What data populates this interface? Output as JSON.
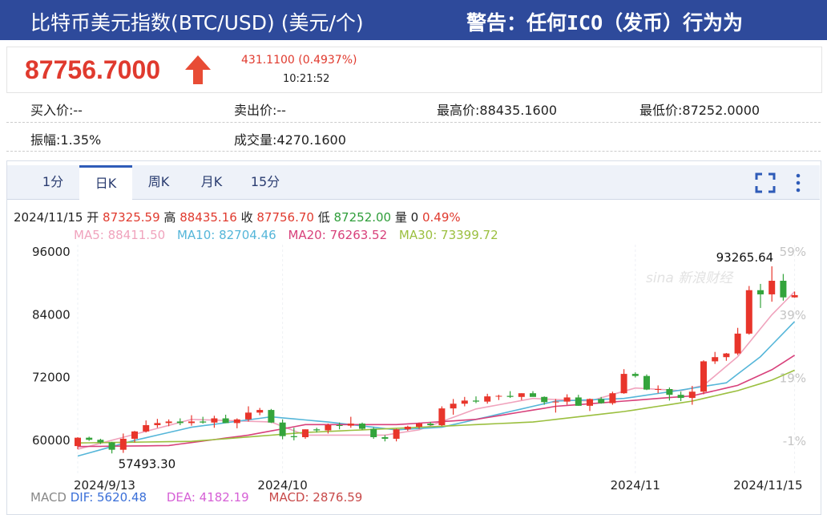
{
  "header": {
    "title": "比特币美元指数(BTC/USD) (美元/个)",
    "warning": "警告：任何ICO（发币）行为为"
  },
  "quote": {
    "price": "87756.7000",
    "change": "431.1100 (0.4937%)",
    "time": "10:21:52"
  },
  "stats": [
    "买入价:--",
    "卖出价:--",
    "最高价:88435.1600",
    "最低价:87252.0000",
    "振幅:1.35%",
    "成交量:4270.1600"
  ],
  "tabs": [
    "1分",
    "日K",
    "周K",
    "月K",
    "15分"
  ],
  "chart_data": {
    "type": "candlestick",
    "info": {
      "labels": [
        "开",
        "高",
        "收",
        "低",
        "量"
      ],
      "values": [
        "87325.59",
        "88435.16",
        "87756.70",
        "87252.00",
        "0"
      ],
      "change": "0.49%"
    },
    "annotations": {
      "max": "93265.64",
      "min": "57493.30"
    },
    "watermark": "sina 新浪财经",
    "up_color": "#e8352b",
    "down_color": "#34a43c",
    "categories": [
      "2024/9/13",
      null,
      null,
      null,
      null,
      null,
      null,
      null,
      null,
      null,
      null,
      null,
      null,
      null,
      null,
      null,
      null,
      null,
      "2024/10",
      null,
      null,
      null,
      null,
      null,
      null,
      null,
      null,
      null,
      null,
      null,
      null,
      null,
      null,
      null,
      null,
      null,
      null,
      null,
      null,
      null,
      null,
      null,
      null,
      null,
      null,
      null,
      null,
      null,
      null,
      "2024/11",
      null,
      null,
      null,
      null,
      null,
      null,
      null,
      null,
      null,
      null,
      null,
      null,
      null,
      "2024/11/15"
    ],
    "candles": [
      {
        "o": 58900,
        "h": 60600,
        "l": 58300,
        "c": 60500
      },
      {
        "o": 60500,
        "h": 60700,
        "l": 59900,
        "c": 60100
      },
      {
        "o": 60100,
        "h": 60300,
        "l": 59300,
        "c": 59600
      },
      {
        "o": 59600,
        "h": 59700,
        "l": 57493.3,
        "c": 58200
      },
      {
        "o": 58200,
        "h": 61300,
        "l": 57600,
        "c": 60300
      },
      {
        "o": 60300,
        "h": 61800,
        "l": 59600,
        "c": 61700
      },
      {
        "o": 61700,
        "h": 63800,
        "l": 61500,
        "c": 62900
      },
      {
        "o": 62900,
        "h": 64100,
        "l": 62400,
        "c": 63300
      },
      {
        "o": 63300,
        "h": 64000,
        "l": 62700,
        "c": 63600
      },
      {
        "o": 63600,
        "h": 64200,
        "l": 62900,
        "c": 63300
      },
      {
        "o": 63300,
        "h": 64800,
        "l": 62800,
        "c": 63600
      },
      {
        "o": 63600,
        "h": 64500,
        "l": 63200,
        "c": 63400
      },
      {
        "o": 63400,
        "h": 64700,
        "l": 62400,
        "c": 64200
      },
      {
        "o": 64200,
        "h": 64900,
        "l": 63300,
        "c": 63300
      },
      {
        "o": 63300,
        "h": 64200,
        "l": 62300,
        "c": 64000
      },
      {
        "o": 64000,
        "h": 66500,
        "l": 63600,
        "c": 65300
      },
      {
        "o": 65300,
        "h": 66200,
        "l": 64800,
        "c": 65800
      },
      {
        "o": 65800,
        "h": 66000,
        "l": 63300,
        "c": 63400
      },
      {
        "o": 63400,
        "h": 64000,
        "l": 60200,
        "c": 60800
      },
      {
        "o": 60800,
        "h": 62400,
        "l": 60000,
        "c": 60600
      },
      {
        "o": 60600,
        "h": 62100,
        "l": 60300,
        "c": 62100
      },
      {
        "o": 62100,
        "h": 62400,
        "l": 61500,
        "c": 61900
      },
      {
        "o": 61900,
        "h": 63200,
        "l": 61300,
        "c": 62900
      },
      {
        "o": 62900,
        "h": 63400,
        "l": 62100,
        "c": 62800
      },
      {
        "o": 62800,
        "h": 64500,
        "l": 62400,
        "c": 63200
      },
      {
        "o": 63200,
        "h": 63400,
        "l": 62000,
        "c": 62200
      },
      {
        "o": 62200,
        "h": 62500,
        "l": 60300,
        "c": 60600
      },
      {
        "o": 60600,
        "h": 61000,
        "l": 59800,
        "c": 60300
      },
      {
        "o": 60300,
        "h": 62200,
        "l": 59800,
        "c": 62100
      },
      {
        "o": 62100,
        "h": 62800,
        "l": 61800,
        "c": 62600
      },
      {
        "o": 62600,
        "h": 63400,
        "l": 62200,
        "c": 63200
      },
      {
        "o": 63200,
        "h": 63500,
        "l": 62800,
        "c": 62900
      },
      {
        "o": 62900,
        "h": 66500,
        "l": 62700,
        "c": 66100
      },
      {
        "o": 66100,
        "h": 67900,
        "l": 64900,
        "c": 67000
      },
      {
        "o": 67000,
        "h": 68300,
        "l": 66500,
        "c": 67600
      },
      {
        "o": 67600,
        "h": 68400,
        "l": 67100,
        "c": 67400
      },
      {
        "o": 67400,
        "h": 68900,
        "l": 67000,
        "c": 68400
      },
      {
        "o": 68400,
        "h": 68700,
        "l": 67700,
        "c": 68500
      },
      {
        "o": 68500,
        "h": 69400,
        "l": 68100,
        "c": 68300
      },
      {
        "o": 68300,
        "h": 69000,
        "l": 67700,
        "c": 69000
      },
      {
        "o": 69000,
        "h": 69400,
        "l": 68400,
        "c": 68300
      },
      {
        "o": 68300,
        "h": 68400,
        "l": 66800,
        "c": 67300
      },
      {
        "o": 67300,
        "h": 67900,
        "l": 65300,
        "c": 67400
      },
      {
        "o": 67400,
        "h": 68800,
        "l": 66800,
        "c": 68200
      },
      {
        "o": 68200,
        "h": 68700,
        "l": 66600,
        "c": 66600
      },
      {
        "o": 66600,
        "h": 68000,
        "l": 65600,
        "c": 67900
      },
      {
        "o": 67900,
        "h": 68300,
        "l": 67000,
        "c": 67100
      },
      {
        "o": 67100,
        "h": 69300,
        "l": 66800,
        "c": 69000
      },
      {
        "o": 69000,
        "h": 73600,
        "l": 68900,
        "c": 72700
      },
      {
        "o": 72700,
        "h": 73000,
        "l": 72000,
        "c": 72300
      },
      {
        "o": 72300,
        "h": 72600,
        "l": 69600,
        "c": 69700
      },
      {
        "o": 69700,
        "h": 70500,
        "l": 69000,
        "c": 69800
      },
      {
        "o": 69800,
        "h": 70100,
        "l": 67600,
        "c": 68700
      },
      {
        "o": 68700,
        "h": 69300,
        "l": 67500,
        "c": 68100
      },
      {
        "o": 68100,
        "h": 70400,
        "l": 66800,
        "c": 69300
      },
      {
        "o": 69300,
        "h": 75300,
        "l": 68800,
        "c": 75100
      },
      {
        "o": 75100,
        "h": 76900,
        "l": 74600,
        "c": 75900
      },
      {
        "o": 75900,
        "h": 76700,
        "l": 75200,
        "c": 76600
      },
      {
        "o": 76600,
        "h": 81500,
        "l": 76300,
        "c": 80400
      },
      {
        "o": 80400,
        "h": 89500,
        "l": 80200,
        "c": 88700
      },
      {
        "o": 88700,
        "h": 89900,
        "l": 85300,
        "c": 87900
      },
      {
        "o": 87900,
        "h": 93265.64,
        "l": 86500,
        "c": 90500
      },
      {
        "o": 90500,
        "h": 91800,
        "l": 86700,
        "c": 87325.59
      },
      {
        "o": 87325.59,
        "h": 88435.16,
        "l": 87252,
        "c": 87756.7
      }
    ],
    "series": [
      {
        "name": "MA5:",
        "color": "#f0a3bd",
        "latest_label": "88411.50",
        "values": [
          58300,
          58870,
          59440,
          60010,
          60580,
          61150,
          61720,
          62290,
          62860,
          63430,
          64000,
          63930,
          63860,
          63790,
          63710,
          63640,
          63570,
          63500,
          62670,
          61830,
          61000,
          61000,
          61000,
          61000,
          61000,
          61000,
          61000,
          61000,
          61330,
          61670,
          62000,
          62800,
          63600,
          64400,
          65200,
          66000,
          66400,
          66800,
          67200,
          67600,
          68000,
          67900,
          67800,
          67700,
          67600,
          67500,
          68130,
          68750,
          69380,
          70000,
          69880,
          69750,
          69630,
          69500,
          70000,
          70500,
          72330,
          74170,
          76000,
          78670,
          81330,
          84000,
          86210,
          88411.5
        ]
      },
      {
        "name": "MA10:",
        "color": "#55b6d9",
        "latest_label": "82704.46",
        "values": [
          57000,
          57600,
          58200,
          58800,
          59400,
          60000,
          60500,
          61000,
          61500,
          62000,
          62500,
          62790,
          63070,
          63360,
          63640,
          63930,
          64210,
          64500,
          64300,
          64100,
          63900,
          63700,
          63500,
          63250,
          63000,
          62750,
          62500,
          62250,
          62000,
          62130,
          62250,
          62380,
          62500,
          63000,
          63500,
          64000,
          64500,
          65000,
          65500,
          66000,
          66500,
          67000,
          67500,
          67580,
          67670,
          67750,
          67830,
          67920,
          68000,
          68320,
          68640,
          68960,
          69280,
          69600,
          69950,
          70300,
          70650,
          71000,
          72670,
          74330,
          76000,
          78230,
          80470,
          82704.46
        ]
      },
      {
        "name": "MA20:",
        "color": "#d8417b",
        "latest_label": "76263.52",
        "values": [
          58800,
          58830,
          58850,
          58880,
          58900,
          58930,
          58950,
          58980,
          59000,
          59290,
          59570,
          59860,
          60140,
          60430,
          60710,
          61000,
          61400,
          61800,
          62200,
          62600,
          63000,
          63000,
          63000,
          63000,
          63000,
          63000,
          63000,
          63000,
          63000,
          63140,
          63290,
          63430,
          63570,
          63710,
          63860,
          64000,
          64360,
          64710,
          65070,
          65430,
          65790,
          66140,
          66500,
          66670,
          66830,
          67000,
          67170,
          67330,
          67500,
          67670,
          67830,
          68000,
          68170,
          68330,
          68500,
          69000,
          69500,
          70000,
          70500,
          71500,
          72500,
          73500,
          74880,
          76263.52
        ]
      },
      {
        "name": "MA30:",
        "color": "#9bbf3f",
        "latest_label": "73399.72",
        "values": [
          59500,
          59530,
          59560,
          59590,
          59620,
          59650,
          59680,
          59710,
          59740,
          59770,
          59800,
          59970,
          60140,
          60310,
          60480,
          60650,
          60820,
          60990,
          61160,
          61330,
          61500,
          61600,
          61700,
          61800,
          61900,
          62000,
          62100,
          62200,
          62300,
          62400,
          62500,
          62600,
          62700,
          62800,
          62900,
          63000,
          63100,
          63200,
          63300,
          63400,
          63500,
          63750,
          64000,
          64250,
          64500,
          64750,
          65000,
          65250,
          65500,
          65830,
          66170,
          66500,
          66830,
          67170,
          67500,
          68000,
          68500,
          69000,
          69500,
          70170,
          70830,
          71500,
          72450,
          73399.72
        ]
      }
    ],
    "ylim": [
      53700,
      97400
    ],
    "yticks": [
      60000,
      72000,
      84000,
      96000
    ],
    "y2lim": [
      -11.1,
      61.3
    ],
    "y2ticks": [
      {
        "value": -1,
        "label": "-1%"
      },
      {
        "value": 19,
        "label": "19%"
      },
      {
        "value": 39,
        "label": "39%"
      },
      {
        "value": 59,
        "label": "59%"
      }
    ],
    "macd": {
      "title": "MACD",
      "items": [
        "DIF: 5620.48",
        "DEA: 4182.19",
        "MACD: 2876.59"
      ],
      "colors": [
        "#3a6fd8",
        "#d660d6",
        "#c84a4a"
      ]
    }
  }
}
